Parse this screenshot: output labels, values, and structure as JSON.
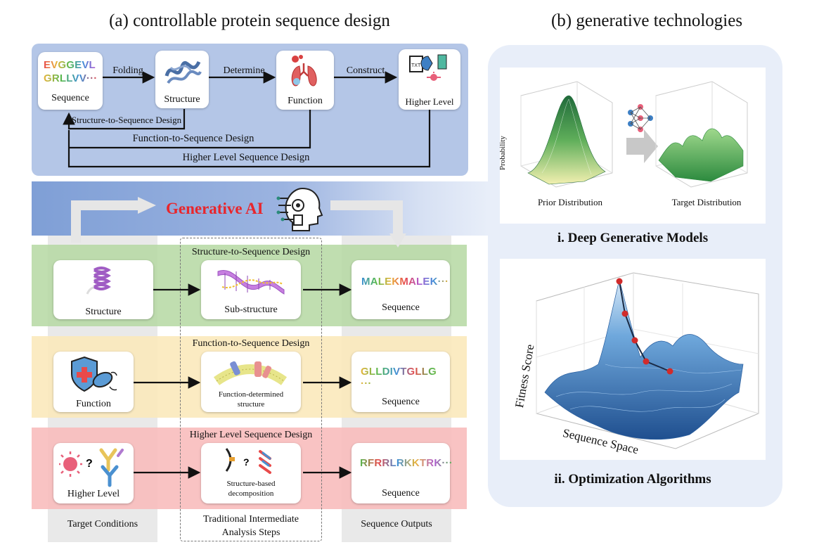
{
  "headings": {
    "left": "(a) controllable protein sequence design",
    "right": "(b) generative technologies"
  },
  "top_flow": {
    "sequence_text_line1": "EVGGEVL",
    "sequence_text_line2": "GRLLVV···",
    "nodes": [
      "Sequence",
      "Structure",
      "Function",
      "Higher Level"
    ],
    "edges": [
      "Folding",
      "Determine",
      "Construct"
    ],
    "feedback": [
      "Structure-to-Sequence Design",
      "Function-to-Sequence Design",
      "Higher Level Sequence Design"
    ]
  },
  "banner": {
    "title": "Generative AI"
  },
  "rows": [
    {
      "band_title": "Structure-to-Sequence Design",
      "input": "Structure",
      "intermediate": "Sub-structure",
      "output_seq": "MALEKMALEK···",
      "output_label": "Sequence"
    },
    {
      "band_title": "Function-to-Sequence Design",
      "input": "Function",
      "intermediate_line1": "Function-determined",
      "intermediate_line2": "structure",
      "output_seq": "GLLDIVTGLLG ···",
      "output_label": "Sequence"
    },
    {
      "band_title": "Higher Level Sequence Design",
      "input": "Higher Level",
      "intermediate_line1": "Structure-based",
      "intermediate_line2": "decomposition",
      "output_seq": "RFRRLRKKTRK···",
      "output_label": "Sequence"
    }
  ],
  "columns": {
    "left": "Target Conditions",
    "middle_line1": "Traditional Intermediate",
    "middle_line2": "Analysis Steps",
    "right": "Sequence Outputs"
  },
  "panel_b": {
    "dgm": {
      "ylabel": "Probability",
      "prior_label": "Prior Distribution",
      "target_label": "Target Distribution",
      "caption": "i. Deep Generative Models"
    },
    "opt": {
      "zlabel": "Fitness Score",
      "xlabel": "Sequence Space",
      "caption": "ii. Optimization Algorithms"
    }
  },
  "colors": {
    "top_panel": "#b4c6e7",
    "banner_blue": "#7f9fd6",
    "green_band": "#b5d8a2",
    "yellow_band": "#fbe9bb",
    "red_band": "#f8bcbc",
    "right_panel": "#e8eef9",
    "generative_red": "#e8262c"
  }
}
